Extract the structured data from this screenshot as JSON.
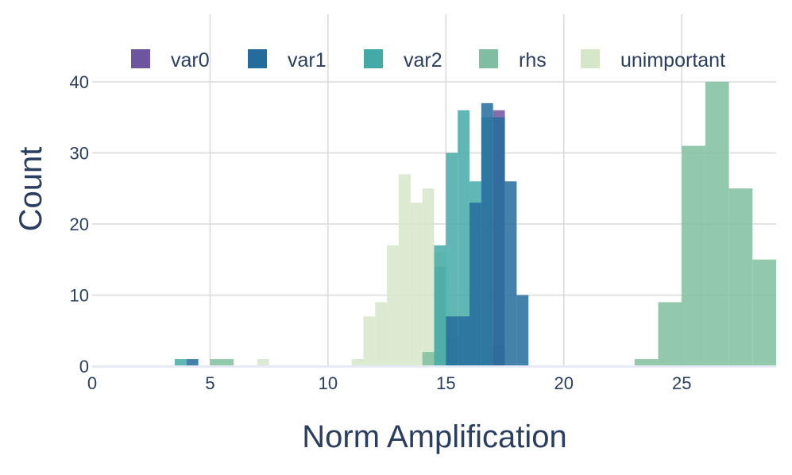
{
  "chart_data": {
    "type": "bar",
    "subtype": "overlaid histogram",
    "xlabel": "Norm Amplification",
    "ylabel": "Count",
    "xlim": [
      0,
      29
    ],
    "ylim": [
      0,
      40
    ],
    "xticks": [
      0,
      5,
      10,
      15,
      20,
      25
    ],
    "yticks": [
      0,
      10,
      20,
      30,
      40
    ],
    "grid": true,
    "legend_position": "top",
    "series": [
      {
        "name": "unimportant",
        "color": "#d6e6c9",
        "bins": [
          {
            "x0": 7.0,
            "x1": 7.5,
            "count": 1
          },
          {
            "x0": 11.0,
            "x1": 11.5,
            "count": 1
          },
          {
            "x0": 11.5,
            "x1": 12.0,
            "count": 7
          },
          {
            "x0": 12.0,
            "x1": 12.5,
            "count": 9
          },
          {
            "x0": 12.5,
            "x1": 13.0,
            "count": 17
          },
          {
            "x0": 13.0,
            "x1": 13.5,
            "count": 27
          },
          {
            "x0": 13.5,
            "x1": 14.0,
            "count": 23
          },
          {
            "x0": 14.0,
            "x1": 14.5,
            "count": 25
          },
          {
            "x0": 14.5,
            "x1": 15.0,
            "count": 16
          }
        ]
      },
      {
        "name": "rhs",
        "color": "#7fbf9f",
        "bins": [
          {
            "x0": 5.0,
            "x1": 6.0,
            "count": 1
          },
          {
            "x0": 14.0,
            "x1": 14.5,
            "count": 2
          },
          {
            "x0": 14.5,
            "x1": 15.0,
            "count": 14
          },
          {
            "x0": 15.0,
            "x1": 15.5,
            "count": 4
          },
          {
            "x0": 23.0,
            "x1": 24.0,
            "count": 1
          },
          {
            "x0": 24.0,
            "x1": 25.0,
            "count": 9
          },
          {
            "x0": 25.0,
            "x1": 26.0,
            "count": 31
          },
          {
            "x0": 26.0,
            "x1": 27.0,
            "count": 40
          },
          {
            "x0": 27.0,
            "x1": 28.0,
            "count": 25
          },
          {
            "x0": 28.0,
            "x1": 29.0,
            "count": 15
          }
        ]
      },
      {
        "name": "var2",
        "color": "#44aaa8",
        "bins": [
          {
            "x0": 3.5,
            "x1": 4.0,
            "count": 1
          },
          {
            "x0": 14.5,
            "x1": 15.0,
            "count": 17
          },
          {
            "x0": 15.0,
            "x1": 15.5,
            "count": 30
          },
          {
            "x0": 15.5,
            "x1": 16.0,
            "count": 36
          },
          {
            "x0": 16.0,
            "x1": 16.5,
            "count": 26
          },
          {
            "x0": 16.5,
            "x1": 17.0,
            "count": 35
          },
          {
            "x0": 17.0,
            "x1": 17.5,
            "count": 3
          }
        ]
      },
      {
        "name": "var0",
        "color": "#6e55a0",
        "bins": [
          {
            "x0": 17.0,
            "x1": 17.5,
            "count": 36
          }
        ]
      },
      {
        "name": "var1",
        "color": "#246c9c",
        "bins": [
          {
            "x0": 4.0,
            "x1": 4.5,
            "count": 1
          },
          {
            "x0": 15.0,
            "x1": 15.5,
            "count": 7
          },
          {
            "x0": 15.5,
            "x1": 16.0,
            "count": 7
          },
          {
            "x0": 16.0,
            "x1": 16.5,
            "count": 23
          },
          {
            "x0": 16.5,
            "x1": 17.0,
            "count": 37
          },
          {
            "x0": 17.0,
            "x1": 17.5,
            "count": 35
          },
          {
            "x0": 17.5,
            "x1": 18.0,
            "count": 26
          },
          {
            "x0": 18.0,
            "x1": 18.5,
            "count": 10
          }
        ]
      }
    ],
    "legend_order": [
      "var0",
      "var1",
      "var2",
      "rhs",
      "unimportant"
    ]
  }
}
